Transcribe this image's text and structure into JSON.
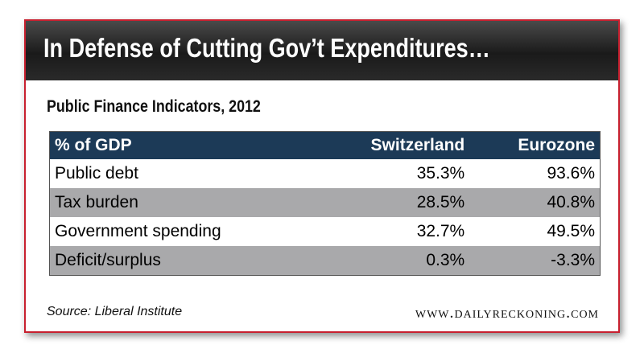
{
  "header": {
    "title": "In Defense of Cutting Gov’t Expenditures…"
  },
  "subtitle": "Public Finance Indicators, 2012",
  "table": {
    "columns": [
      "% of GDP",
      "Switzerland",
      "Eurozone"
    ],
    "rows": [
      [
        "Public debt",
        "35.3%",
        "93.6%"
      ],
      [
        "Tax burden",
        "28.5%",
        "40.8%"
      ],
      [
        "Government spending",
        "32.7%",
        "49.5%"
      ],
      [
        "Deficit/surplus",
        "0.3%",
        "-3.3%"
      ]
    ]
  },
  "footer": {
    "source": "Source: Liberal Institute",
    "site": "www.dailyreckoning.com"
  }
}
